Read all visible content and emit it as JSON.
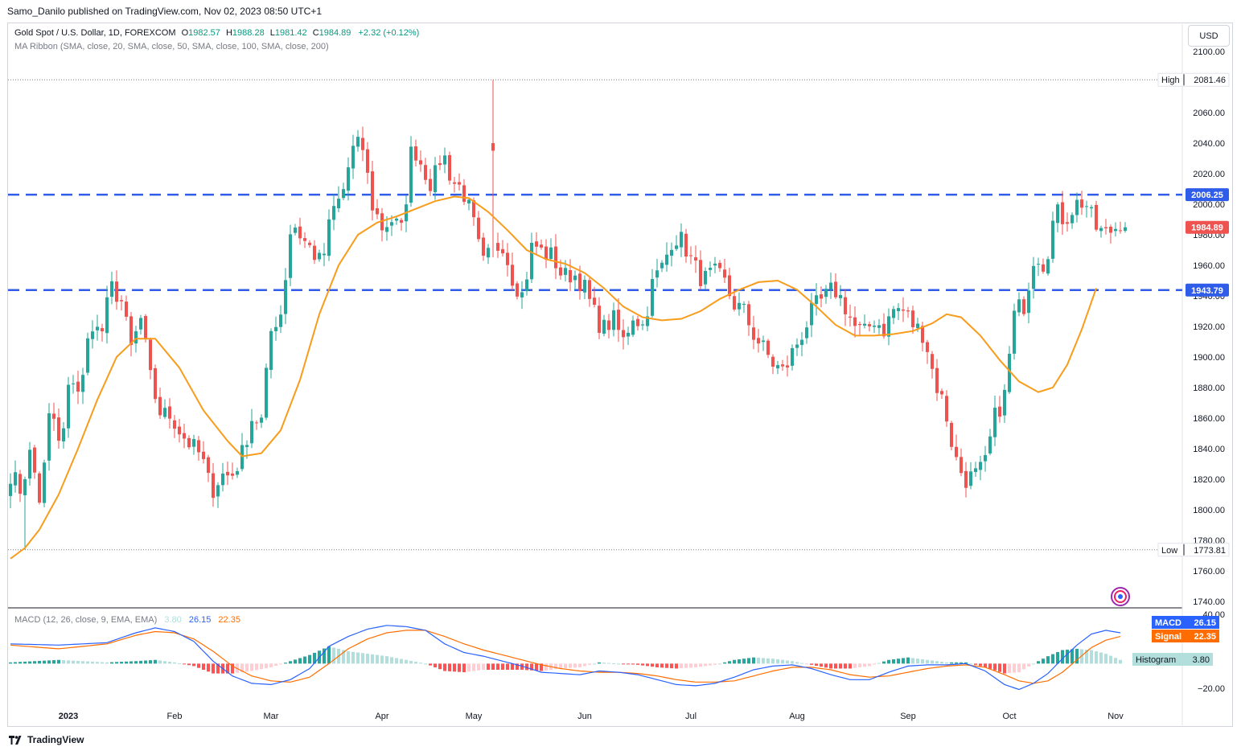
{
  "publisher": "Samo_Danilo published on TradingView.com, Nov 02, 2023 08:50 UTC+1",
  "legend": {
    "symbol": "Gold Spot / U.S. Dollar, 1D, FOREXCOM",
    "open_label": "O",
    "open": "1982.57",
    "high_label": "H",
    "high": "1988.28",
    "low_label": "L",
    "low": "1981.42",
    "close_label": "C",
    "close": "1984.89",
    "change": "+2.32 (+0.12%)",
    "ma_ribbon": "MA Ribbon (SMA, close, 20, SMA, close, 50, SMA, close, 100, SMA, close, 200)",
    "macd": "MACD (12, 26, close, 9, EMA, EMA)",
    "macd_hist": "3.80",
    "macd_line": "26.15",
    "macd_signal": "22.35"
  },
  "currency_button": "USD",
  "footer_brand": "TradingView",
  "colors": {
    "up": "#26a69a",
    "down": "#ef5350",
    "ma": "#f89c1c",
    "level": "#2f5ce8",
    "macd": "#2962ff",
    "signal": "#ff6d00"
  },
  "chart_data": [
    {
      "type": "candlestick",
      "title": "Gold Spot / U.S. Dollar, 1D, FOREXCOM",
      "x_ticks": [
        "2023",
        "Feb",
        "Mar",
        "Apr",
        "May",
        "Jun",
        "Jul",
        "Aug",
        "Sep",
        "Oct",
        "Nov"
      ],
      "y_ticks": [
        "2100.00",
        "2080.00",
        "2060.00",
        "2040.00",
        "2020.00",
        "2000.00",
        "1980.00",
        "1960.00",
        "1940.00",
        "1920.00",
        "1900.00",
        "1880.00",
        "1860.00",
        "1840.00",
        "1820.00",
        "1800.00",
        "1780.00",
        "1760.00",
        "1740.00"
      ],
      "ylim": [
        1736,
        2103
      ],
      "high_label": "High",
      "high_value": "2081.46",
      "low_label": "Low",
      "low_value": "1773.81",
      "levels": [
        {
          "label": "2006.25",
          "value": 2006.25
        },
        {
          "label": "1943.79",
          "value": 1943.79
        }
      ],
      "last_price": {
        "label": "1984.89",
        "value": 1984.89
      },
      "anchors": [
        [
          1824,
          1813
        ],
        [
          1838,
          1803
        ],
        [
          1870,
          1836
        ],
        [
          1890,
          1875
        ],
        [
          1925,
          1913
        ],
        [
          1946,
          1938
        ],
        [
          1905,
          1925
        ],
        [
          1883,
          1862
        ],
        [
          1862,
          1850
        ],
        [
          1842,
          1835
        ],
        [
          1812,
          1823
        ],
        [
          1822,
          1835
        ],
        [
          1860,
          1858
        ],
        [
          1920,
          1930
        ],
        [
          1990,
          1978
        ],
        [
          1970,
          1960
        ],
        [
          1995,
          2005
        ],
        [
          2035,
          2040
        ],
        [
          2000,
          1985
        ],
        [
          1990,
          1982
        ],
        [
          2040,
          2025
        ],
        [
          2012,
          2035
        ],
        [
          2015,
          2010
        ],
        [
          1990,
          1960
        ],
        [
          1970,
          1975
        ],
        [
          1952,
          1940
        ],
        [
          1975,
          1968
        ],
        [
          1966,
          1952
        ],
        [
          1955,
          1948
        ],
        [
          1930,
          1918
        ],
        [
          1925,
          1910
        ],
        [
          1928,
          1920
        ],
        [
          1950,
          1960
        ],
        [
          1980,
          1975
        ],
        [
          1960,
          1950
        ],
        [
          1955,
          1950
        ],
        [
          1935,
          1930
        ],
        [
          1915,
          1905
        ],
        [
          1895,
          1890
        ],
        [
          1905,
          1918
        ],
        [
          1932,
          1938
        ],
        [
          1945,
          1935
        ],
        [
          1920,
          1915
        ],
        [
          1925,
          1918
        ],
        [
          1932,
          1930
        ],
        [
          1920,
          1915
        ],
        [
          1885,
          1868
        ],
        [
          1835,
          1820
        ],
        [
          1822,
          1828
        ],
        [
          1860,
          1875
        ],
        [
          1930,
          1935
        ],
        [
          1970,
          1960
        ],
        [
          1995,
          1990
        ],
        [
          2000,
          2002
        ],
        [
          1985,
          1980
        ],
        [
          1985,
          1985
        ]
      ],
      "ma": [
        [
          0,
          1768
        ],
        [
          3,
          1775
        ],
        [
          6,
          1787
        ],
        [
          10,
          1810
        ],
        [
          14,
          1840
        ],
        [
          18,
          1872
        ],
        [
          22,
          1900
        ],
        [
          26,
          1912
        ],
        [
          30,
          1912
        ],
        [
          35,
          1893
        ],
        [
          40,
          1865
        ],
        [
          45,
          1845
        ],
        [
          48,
          1835
        ],
        [
          52,
          1837
        ],
        [
          56,
          1852
        ],
        [
          60,
          1885
        ],
        [
          64,
          1928
        ],
        [
          68,
          1960
        ],
        [
          72,
          1980
        ],
        [
          76,
          1988
        ],
        [
          80,
          1992
        ],
        [
          84,
          1997
        ],
        [
          88,
          2002
        ],
        [
          92,
          2005
        ],
        [
          95,
          2004
        ],
        [
          99,
          1995
        ],
        [
          103,
          1983
        ],
        [
          107,
          1970
        ],
        [
          111,
          1964
        ],
        [
          115,
          1961
        ],
        [
          119,
          1955
        ],
        [
          123,
          1945
        ],
        [
          127,
          1933
        ],
        [
          131,
          1926
        ],
        [
          135,
          1924
        ],
        [
          139,
          1925
        ],
        [
          143,
          1930
        ],
        [
          147,
          1938
        ],
        [
          151,
          1944
        ],
        [
          155,
          1949
        ],
        [
          159,
          1950
        ],
        [
          163,
          1944
        ],
        [
          167,
          1933
        ],
        [
          171,
          1921
        ],
        [
          175,
          1914
        ],
        [
          179,
          1914
        ],
        [
          183,
          1915
        ],
        [
          187,
          1917
        ],
        [
          191,
          1922
        ],
        [
          194,
          1928
        ],
        [
          197,
          1926
        ],
        [
          201,
          1914
        ],
        [
          205,
          1898
        ],
        [
          209,
          1884
        ],
        [
          213,
          1877
        ],
        [
          216,
          1880
        ],
        [
          219,
          1895
        ],
        [
          222,
          1918
        ],
        [
          225,
          1945
        ]
      ]
    },
    {
      "type": "macd",
      "title": "MACD (12, 26, close, 9, EMA, EMA)",
      "y_ticks": [
        "40.00",
        "−20.00"
      ],
      "ylim": [
        -24,
        41
      ],
      "labels": {
        "macd": "MACD",
        "signal": "Signal",
        "histogram": "Histogram"
      },
      "macd_value": 26.15,
      "signal_value": 22.35,
      "histogram_value": 3.8,
      "macd_line": [
        [
          0,
          16
        ],
        [
          10,
          15
        ],
        [
          20,
          17
        ],
        [
          26,
          25
        ],
        [
          30,
          29
        ],
        [
          34,
          26
        ],
        [
          38,
          18
        ],
        [
          42,
          2
        ],
        [
          46,
          -10
        ],
        [
          50,
          -16
        ],
        [
          54,
          -17
        ],
        [
          58,
          -13
        ],
        [
          62,
          -4
        ],
        [
          66,
          14
        ],
        [
          70,
          22
        ],
        [
          74,
          28
        ],
        [
          78,
          31
        ],
        [
          82,
          30
        ],
        [
          86,
          27
        ],
        [
          90,
          16
        ],
        [
          94,
          9
        ],
        [
          98,
          6
        ],
        [
          102,
          2
        ],
        [
          106,
          -2
        ],
        [
          110,
          -7
        ],
        [
          114,
          -8
        ],
        [
          118,
          -9
        ],
        [
          122,
          -6
        ],
        [
          126,
          -7
        ],
        [
          130,
          -9
        ],
        [
          134,
          -13
        ],
        [
          138,
          -17
        ],
        [
          142,
          -18
        ],
        [
          146,
          -16
        ],
        [
          150,
          -11
        ],
        [
          154,
          -5
        ],
        [
          158,
          -2
        ],
        [
          162,
          -1
        ],
        [
          166,
          -4
        ],
        [
          170,
          -9
        ],
        [
          174,
          -13
        ],
        [
          178,
          -13
        ],
        [
          182,
          -7
        ],
        [
          186,
          -2
        ],
        [
          190,
          -1
        ],
        [
          194,
          -1
        ],
        [
          198,
          0
        ],
        [
          202,
          -6
        ],
        [
          206,
          -17
        ],
        [
          209,
          -21
        ],
        [
          212,
          -16
        ],
        [
          215,
          -8
        ],
        [
          218,
          4
        ],
        [
          221,
          15
        ],
        [
          224,
          24
        ],
        [
          227,
          27
        ],
        [
          230,
          25
        ]
      ],
      "signal_line": [
        [
          0,
          15
        ],
        [
          10,
          12
        ],
        [
          20,
          16
        ],
        [
          26,
          23
        ],
        [
          30,
          26
        ],
        [
          34,
          25
        ],
        [
          38,
          20
        ],
        [
          42,
          10
        ],
        [
          46,
          -2
        ],
        [
          50,
          -10
        ],
        [
          54,
          -14
        ],
        [
          58,
          -15
        ],
        [
          62,
          -11
        ],
        [
          66,
          0
        ],
        [
          70,
          12
        ],
        [
          74,
          20
        ],
        [
          78,
          25
        ],
        [
          82,
          27
        ],
        [
          86,
          27
        ],
        [
          90,
          22
        ],
        [
          94,
          16
        ],
        [
          98,
          11
        ],
        [
          102,
          7
        ],
        [
          106,
          3
        ],
        [
          110,
          -1
        ],
        [
          114,
          -4
        ],
        [
          118,
          -6
        ],
        [
          122,
          -7
        ],
        [
          126,
          -7
        ],
        [
          130,
          -8
        ],
        [
          134,
          -10
        ],
        [
          138,
          -13
        ],
        [
          142,
          -15
        ],
        [
          146,
          -15
        ],
        [
          150,
          -14
        ],
        [
          154,
          -10
        ],
        [
          158,
          -6
        ],
        [
          162,
          -3
        ],
        [
          166,
          -3
        ],
        [
          170,
          -5
        ],
        [
          174,
          -9
        ],
        [
          178,
          -11
        ],
        [
          182,
          -10
        ],
        [
          186,
          -7
        ],
        [
          190,
          -4
        ],
        [
          194,
          -2
        ],
        [
          198,
          -1
        ],
        [
          202,
          -3
        ],
        [
          206,
          -9
        ],
        [
          209,
          -14
        ],
        [
          212,
          -16
        ],
        [
          215,
          -14
        ],
        [
          218,
          -7
        ],
        [
          221,
          3
        ],
        [
          224,
          13
        ],
        [
          227,
          19
        ],
        [
          230,
          22
        ]
      ]
    }
  ]
}
